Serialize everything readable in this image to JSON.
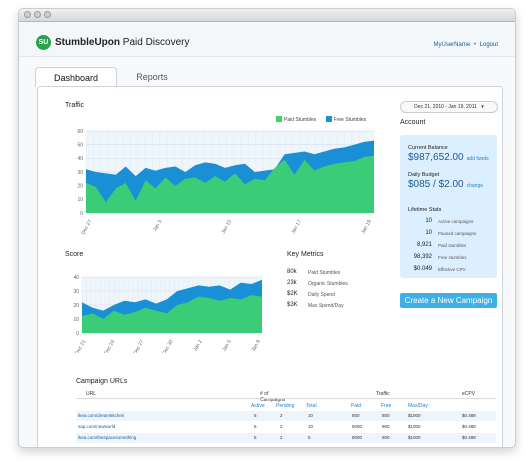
{
  "window": {
    "title": ""
  },
  "header": {
    "brand_bold": "StumbleUpon",
    "brand_light": " Paid Discovery",
    "logo_text": "SU",
    "username": "MyUserName",
    "separator": "•",
    "logout": "Logout"
  },
  "tabs": [
    {
      "label": "Dashboard",
      "active": true
    },
    {
      "label": "Reports",
      "active": false
    }
  ],
  "traffic": {
    "title": "Traffic",
    "date_range": "Dec 21, 2010 - Jan 19, 2011",
    "legend": {
      "paid": "Paid Stumbles",
      "free": "Free Stumbles"
    }
  },
  "score": {
    "title": "Score"
  },
  "colors": {
    "paid": "#3ed36c",
    "free": "#1a8fd6",
    "accent": "#3fb0e6",
    "panel_bg": "#dcefff"
  },
  "account": {
    "title": "Account",
    "current_balance_label": "Current Balance",
    "current_balance": "$987,652.00",
    "add_funds": "add funds",
    "daily_budget_label": "Daily Budget",
    "daily_budget": "$085 / $2.00",
    "change": "change",
    "lifetime_label": "Lifetime Stats",
    "stats": [
      {
        "num": "10",
        "label": "Active campaigns"
      },
      {
        "num": "10",
        "label": "Paused campaigns"
      },
      {
        "num": "8,921",
        "label": "Paid stumbles"
      },
      {
        "num": "98,392",
        "label": "Free stumbles"
      },
      {
        "num": "$0.049",
        "label": "Effective CPV"
      }
    ]
  },
  "cta": {
    "label": "Create a New Campaign"
  },
  "key_metrics": {
    "title": "Key Metrics",
    "items": [
      {
        "value": "80k",
        "label": "Paid Stumbles"
      },
      {
        "value": "23k",
        "label": "Organic Stumbles"
      },
      {
        "value": "$2K",
        "label": "Daily Spend"
      },
      {
        "value": "$3K",
        "label": "Max Spend/Day"
      }
    ]
  },
  "campaign_urls": {
    "title": "Campaign URLs",
    "headers": {
      "url": "URL",
      "num_campaigns": "# of Campaigns",
      "traffic": "Traffic",
      "ecpv": "eCPV"
    },
    "subheaders": [
      "Active",
      "Pending",
      "Total",
      "Paid",
      "Free",
      "Max/Day"
    ],
    "rows": [
      {
        "url": "ikea.com/dreamkitchen",
        "active": "6",
        "pending": "2",
        "total": "10",
        "paid": "800",
        "free": "800",
        "max": "$1000",
        "ecpv": "$0.488"
      },
      {
        "url": "sap.com/newworld",
        "active": "5",
        "pending": "2",
        "total": "10",
        "paid": "5000",
        "free": "900",
        "max": "$1000",
        "ecpv": "$0.488"
      },
      {
        "url": "ikea.com/thespacesomething",
        "active": "5",
        "pending": "2",
        "total": "5",
        "paid": "8000",
        "free": "900",
        "max": "$1000",
        "ecpv": "$0.488"
      }
    ]
  },
  "chart_data": [
    {
      "type": "area",
      "title": "Traffic",
      "ylim": [
        0,
        60
      ],
      "yticks": [
        0,
        10,
        20,
        30,
        40,
        50,
        60
      ],
      "xtick_labels": [
        "Dec 27",
        "Jan 3",
        "Jan 10",
        "Jan 17",
        "Jan 19"
      ],
      "grid": true,
      "legend_position": "top-right",
      "series": [
        {
          "name": "Paid Stumbles",
          "values": [
            22,
            19,
            8,
            18,
            22,
            9,
            24,
            18,
            26,
            20,
            25,
            26,
            22,
            27,
            23,
            29,
            21,
            25,
            24,
            33,
            39,
            28,
            39,
            31,
            34,
            36,
            37,
            38,
            41,
            42
          ]
        },
        {
          "name": "Free Stumbles",
          "values": [
            32,
            30,
            29,
            28,
            34,
            27,
            33,
            31,
            33,
            34,
            30,
            35,
            37,
            36,
            33,
            35,
            36,
            30,
            31,
            32,
            43,
            44,
            45,
            43,
            45,
            47,
            48,
            50,
            52,
            53
          ]
        }
      ]
    },
    {
      "type": "area",
      "title": "Score",
      "ylim": [
        0,
        40
      ],
      "yticks": [
        0,
        10,
        20,
        30,
        40
      ],
      "xtick_labels": [
        "Dec 21",
        "Dec 24",
        "Dec 27",
        "Dec 30",
        "Jan 2",
        "Jan 5",
        "Jan 8"
      ],
      "grid": true,
      "series": [
        {
          "name": "Paid Stumbles",
          "values": [
            12,
            14,
            10,
            16,
            13,
            15,
            18,
            16,
            14,
            20,
            22,
            26,
            25,
            23,
            25,
            24,
            27,
            26
          ]
        },
        {
          "name": "Free Stumbles",
          "values": [
            22,
            18,
            16,
            20,
            23,
            22,
            24,
            21,
            24,
            30,
            32,
            34,
            33,
            34,
            31,
            36,
            35,
            38
          ]
        }
      ]
    }
  ]
}
